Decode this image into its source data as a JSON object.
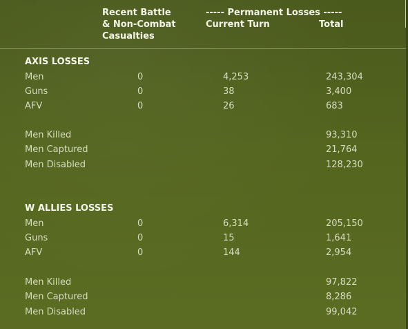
{
  "header": {
    "recent_line1": "Recent Battle",
    "recent_line2": "& Non-Combat",
    "recent_line3": "Casualties",
    "permanent": "----- Permanent Losses -----",
    "current_turn": "Current Turn",
    "total": "Total"
  },
  "axis": {
    "title": "AXIS LOSSES",
    "rows": [
      {
        "label": "Men",
        "recent": "0",
        "turn": "4,253",
        "total": "243,304"
      },
      {
        "label": "Guns",
        "recent": "0",
        "turn": "38",
        "total": "3,400"
      },
      {
        "label": "AFV",
        "recent": "0",
        "turn": "26",
        "total": "683"
      }
    ],
    "breakdown": [
      {
        "label": "Men Killed",
        "total": "93,310"
      },
      {
        "label": "Men Captured",
        "total": "21,764"
      },
      {
        "label": "Men Disabled",
        "total": "128,230"
      }
    ]
  },
  "allies": {
    "title": "W ALLIES LOSSES",
    "rows": [
      {
        "label": "Men",
        "recent": "0",
        "turn": "6,314",
        "total": "205,150"
      },
      {
        "label": "Guns",
        "recent": "0",
        "turn": "15",
        "total": "1,641"
      },
      {
        "label": "AFV",
        "recent": "0",
        "turn": "144",
        "total": "2,954"
      }
    ],
    "breakdown": [
      {
        "label": "Men Killed",
        "total": "97,822"
      },
      {
        "label": "Men Captured",
        "total": "8,286"
      },
      {
        "label": "Men Disabled",
        "total": "99,042"
      }
    ]
  },
  "colors": {
    "background": "#56681f",
    "text": "#d8ddc0",
    "header_text": "#f2f4e6",
    "divider": "#8c9668"
  }
}
